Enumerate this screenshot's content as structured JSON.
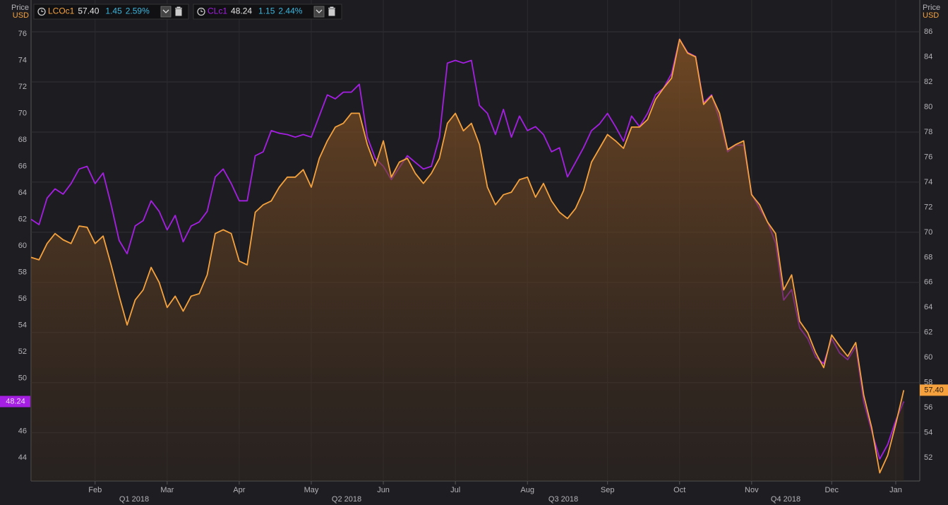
{
  "chart_data": {
    "type": "line",
    "y_label": "Price",
    "y_unit": "USD",
    "categories": [
      null,
      null,
      null,
      null,
      null,
      null,
      null,
      null,
      "Feb",
      null,
      null,
      null,
      null,
      null,
      null,
      null,
      null,
      "Mar",
      null,
      null,
      null,
      null,
      null,
      null,
      null,
      null,
      "Apr",
      null,
      null,
      null,
      null,
      null,
      null,
      null,
      null,
      "May",
      null,
      null,
      null,
      null,
      null,
      null,
      null,
      null,
      "Jun",
      null,
      null,
      null,
      null,
      null,
      null,
      null,
      null,
      "Jul",
      null,
      null,
      null,
      null,
      null,
      null,
      null,
      null,
      "Aug",
      null,
      null,
      null,
      null,
      null,
      null,
      null,
      null,
      null,
      "Sep",
      null,
      null,
      null,
      null,
      null,
      null,
      null,
      null,
      "Oct",
      null,
      null,
      null,
      null,
      null,
      null,
      null,
      null,
      "Nov",
      null,
      null,
      null,
      null,
      null,
      null,
      null,
      null,
      null,
      "Dec",
      null,
      null,
      null,
      null,
      null,
      null,
      null,
      "Jan",
      null,
      null,
      null
    ],
    "quarters": [
      "Q1 2018",
      "Q2 2018",
      "Q3 2018",
      "Q4 2018"
    ],
    "series": [
      {
        "name": "LCOc1",
        "color": "#f5a23e",
        "axis": "y2",
        "area": true,
        "last": "57.40",
        "change": 1.45,
        "change_pct": "2.59%",
        "values": [
          68.0,
          67.8,
          69.1,
          69.9,
          69.4,
          69.1,
          70.5,
          70.4,
          69.1,
          69.7,
          67.4,
          64.9,
          62.6,
          64.6,
          65.4,
          67.2,
          66.0,
          64.0,
          64.9,
          63.7,
          64.9,
          65.1,
          66.6,
          69.9,
          70.2,
          69.9,
          67.7,
          67.4,
          71.6,
          72.2,
          72.5,
          73.6,
          74.4,
          74.4,
          75.0,
          73.6,
          75.9,
          77.3,
          78.4,
          78.7,
          79.5,
          79.5,
          77.0,
          75.3,
          77.3,
          74.4,
          75.6,
          75.9,
          74.7,
          73.9,
          74.7,
          75.9,
          78.7,
          79.5,
          78.1,
          78.7,
          77.0,
          73.6,
          72.2,
          73.0,
          73.2,
          74.2,
          74.4,
          72.8,
          73.9,
          72.5,
          71.6,
          71.1,
          71.9,
          73.3,
          75.6,
          76.7,
          77.8,
          77.3,
          76.7,
          78.4,
          78.4,
          79.0,
          80.6,
          81.5,
          82.3,
          85.4,
          84.3,
          84.0,
          80.2,
          80.9,
          79.5,
          76.6,
          77.0,
          77.3,
          73.0,
          72.2,
          70.8,
          69.9,
          65.4,
          66.6,
          62.9,
          62.0,
          60.4,
          59.2,
          61.8,
          60.9,
          60.1,
          61.2,
          57.0,
          54.4,
          50.8,
          52.2,
          54.7,
          57.4,
          null,
          null
        ]
      },
      {
        "name": "CLc1",
        "color": "#a51fe3",
        "axis": "y",
        "area": false,
        "last": "48.24",
        "change": 1.15,
        "change_pct": "2.44%",
        "values": [
          62.0,
          61.6,
          63.6,
          64.3,
          63.9,
          64.7,
          65.8,
          66.0,
          64.7,
          65.5,
          63.1,
          60.4,
          59.4,
          61.5,
          61.9,
          63.4,
          62.6,
          61.2,
          62.3,
          60.3,
          61.5,
          61.8,
          62.6,
          65.2,
          65.8,
          64.7,
          63.4,
          63.4,
          66.8,
          67.1,
          68.7,
          68.5,
          68.4,
          68.2,
          68.4,
          68.2,
          69.8,
          71.4,
          71.1,
          71.6,
          71.6,
          72.2,
          68.2,
          66.6,
          66.0,
          65.0,
          65.9,
          66.8,
          66.3,
          65.8,
          66.0,
          68.2,
          73.8,
          74.0,
          73.8,
          74.0,
          70.6,
          70.0,
          68.4,
          70.3,
          68.2,
          69.8,
          68.7,
          69.0,
          68.4,
          67.1,
          67.4,
          65.2,
          66.3,
          67.4,
          68.7,
          69.2,
          70.0,
          69.0,
          67.9,
          69.8,
          69.0,
          70.0,
          71.4,
          71.9,
          73.0,
          75.6,
          74.6,
          74.3,
          70.8,
          71.4,
          69.5,
          67.1,
          67.6,
          67.6,
          63.9,
          62.8,
          61.8,
          60.2,
          55.9,
          56.7,
          53.8,
          53.0,
          51.6,
          51.1,
          53.0,
          51.9,
          51.4,
          52.4,
          48.2,
          46.0,
          43.9,
          45.0,
          46.8,
          48.24,
          null,
          null
        ]
      }
    ],
    "ylim": [
      42.24,
      78.56
    ],
    "yticks": [
      44,
      46,
      48,
      50,
      52,
      54,
      56,
      58,
      60,
      62,
      64,
      66,
      68,
      70,
      72,
      74,
      76
    ],
    "y2lim": [
      50.15,
      88.54
    ],
    "y2ticks": [
      52,
      54,
      56,
      58,
      60,
      62,
      64,
      66,
      68,
      70,
      72,
      74,
      76,
      78,
      80,
      82,
      84,
      86
    ],
    "grid": true
  }
}
